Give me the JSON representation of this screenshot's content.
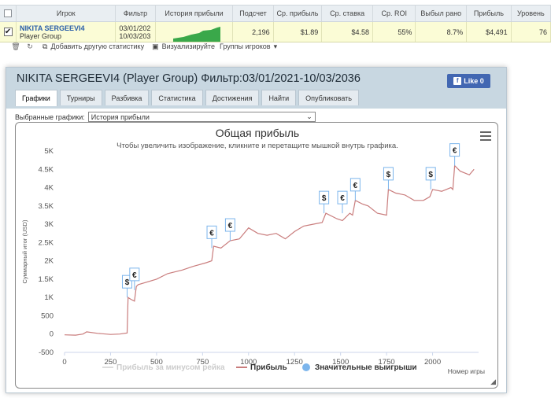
{
  "table": {
    "headers": [
      "Игрок",
      "Фильтр",
      "История прибыли",
      "Подсчет",
      "Ср. прибыль",
      "Ср. ставка",
      "Ср. ROI",
      "Выбыл рано",
      "Прибыль",
      "Уровень"
    ],
    "row": {
      "player_name": "NIKITA SERGEEVI4",
      "group": "Player Group",
      "filter_from": "03/01/202",
      "filter_to": "10/03/203",
      "count": "2,196",
      "avg_profit": "$1.89",
      "avg_stake": "$4.58",
      "avg_roi": "55%",
      "early_out": "8.7%",
      "profit": "$4,491",
      "level": "76"
    }
  },
  "toolbar": {
    "add_stats": "Добавить другую статистику",
    "visualize": "Визуализируйте",
    "player_groups": "Группы игроков"
  },
  "panel": {
    "title": "NIKITA SERGEEVI4 (Player Group) Фильтр:03/01/2021-10/03/2036",
    "like": "Like 0",
    "tabs": [
      "Графики",
      "Турниры",
      "Разбивка",
      "Статистика",
      "Достижения",
      "Найти",
      "Опубликовать"
    ],
    "select_label": "Выбранные графики:",
    "select_value": "История прибыли"
  },
  "chart_data": {
    "type": "line",
    "title": "Общая прибыль",
    "subtitle": "Чтобы увеличить изображение, кликните и перетащите мышкой внутрь графика.",
    "xlabel": "Номер игры",
    "ylabel": "Суммарный итог (USD)",
    "xlim": [
      0,
      2250
    ],
    "ylim": [
      -500,
      5000
    ],
    "x_ticks": [
      0,
      250,
      500,
      750,
      1000,
      1250,
      1500,
      1750,
      2000
    ],
    "y_ticks": [
      -500,
      0,
      500,
      1000,
      1500,
      2000,
      2500,
      3000,
      3500,
      4000,
      4500,
      5000
    ],
    "y_tick_labels": [
      "-500",
      "0",
      "500",
      "1K",
      "1.5K",
      "2K",
      "2.5K",
      "3K",
      "3.5K",
      "4K",
      "4.5K",
      "5K"
    ],
    "series": [
      {
        "name": "Прибыль",
        "color": "#c97c7c",
        "x": [
          0,
          60,
          100,
          120,
          180,
          250,
          300,
          340,
          345,
          360,
          380,
          390,
          400,
          500,
          560,
          640,
          700,
          770,
          800,
          810,
          850,
          900,
          950,
          1000,
          1050,
          1100,
          1150,
          1200,
          1250,
          1300,
          1350,
          1400,
          1420,
          1480,
          1510,
          1550,
          1565,
          1580,
          1620,
          1650,
          1700,
          1750,
          1760,
          1800,
          1850,
          1900,
          1950,
          1985,
          2000,
          2050,
          2100,
          2110,
          2120,
          2150,
          2200,
          2225
        ],
        "y": [
          -20,
          -30,
          0,
          60,
          20,
          -10,
          0,
          30,
          1000,
          950,
          900,
          1300,
          1350,
          1500,
          1650,
          1750,
          1850,
          1950,
          2000,
          2400,
          2350,
          2550,
          2600,
          2900,
          2750,
          2700,
          2750,
          2600,
          2800,
          2950,
          3000,
          3050,
          3300,
          3150,
          3100,
          3300,
          3250,
          3650,
          3550,
          3500,
          3300,
          3250,
          3950,
          3850,
          3800,
          3650,
          3650,
          3750,
          3950,
          3900,
          4000,
          3950,
          4600,
          4450,
          4350,
          4500
        ]
      },
      {
        "name": "Прибыль за минусом рейка",
        "color": "#dddddd",
        "x": [],
        "y": []
      }
    ],
    "markers": [
      {
        "symbol": "$",
        "x": 340,
        "y": 1000
      },
      {
        "symbol": "€",
        "x": 380,
        "y": 1200
      },
      {
        "symbol": "€",
        "x": 800,
        "y": 2350
      },
      {
        "symbol": "€",
        "x": 900,
        "y": 2550
      },
      {
        "symbol": "$",
        "x": 1410,
        "y": 3300
      },
      {
        "symbol": "€",
        "x": 1510,
        "y": 3300
      },
      {
        "symbol": "€",
        "x": 1580,
        "y": 3650
      },
      {
        "symbol": "$",
        "x": 1760,
        "y": 3950
      },
      {
        "symbol": "$",
        "x": 1990,
        "y": 3950
      },
      {
        "symbol": "€",
        "x": 2120,
        "y": 4600
      }
    ],
    "legend": [
      {
        "label": "Прибыль за минусом рейка",
        "color": "#dddddd",
        "kind": "line"
      },
      {
        "label": "Прибыль",
        "color": "#c97c7c",
        "kind": "line"
      },
      {
        "label": "Значительные выигрыши",
        "color": "#7cb5ec",
        "kind": "dot"
      }
    ],
    "legend_position": "bottom",
    "grid": false
  },
  "mini_chart_color": "#3aa84a"
}
